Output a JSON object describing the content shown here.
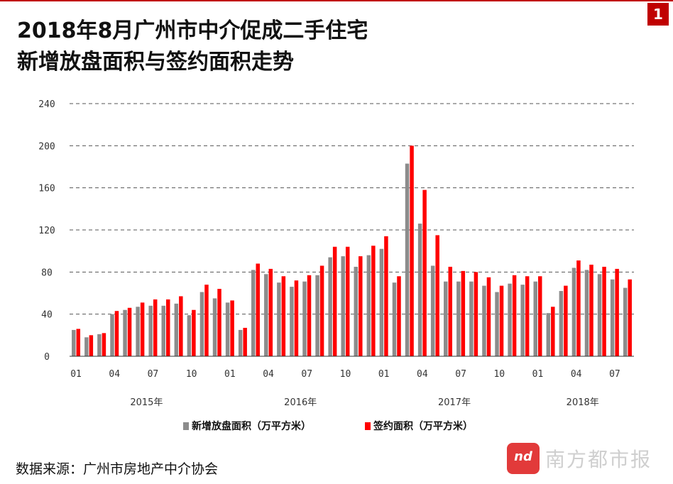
{
  "header": {
    "page_number": "1",
    "title_line1": "2018年8月广州市中介促成二手住宅",
    "title_line2": "新增放盘面积与签约面积走势"
  },
  "footer": {
    "source": "数据来源：广州市房地产中介协会"
  },
  "watermark": {
    "text": "南方都市报",
    "logo": "nd"
  },
  "chart_data": {
    "type": "bar",
    "ylim": [
      0,
      240
    ],
    "yticks": [
      "0",
      "40",
      "80",
      "120",
      "160",
      "200",
      "240"
    ],
    "grid": true,
    "legend_position": "bottom",
    "categories": [
      "01",
      "02",
      "03",
      "04",
      "05",
      "06",
      "07",
      "08",
      "09",
      "10",
      "11",
      "12",
      "01",
      "02",
      "03",
      "04",
      "05",
      "06",
      "07",
      "08",
      "09",
      "10",
      "11",
      "12",
      "01",
      "02",
      "03",
      "04",
      "05",
      "06",
      "07",
      "08",
      "09",
      "10",
      "11",
      "12",
      "01",
      "02",
      "03",
      "04",
      "05",
      "06",
      "07",
      "08"
    ],
    "x_tick_labels": [
      {
        "index": 0,
        "label": "01"
      },
      {
        "index": 3,
        "label": "04"
      },
      {
        "index": 6,
        "label": "07"
      },
      {
        "index": 9,
        "label": "10"
      },
      {
        "index": 12,
        "label": "01"
      },
      {
        "index": 15,
        "label": "04"
      },
      {
        "index": 18,
        "label": "07"
      },
      {
        "index": 21,
        "label": "10"
      },
      {
        "index": 24,
        "label": "01"
      },
      {
        "index": 27,
        "label": "04"
      },
      {
        "index": 30,
        "label": "07"
      },
      {
        "index": 33,
        "label": "10"
      },
      {
        "index": 36,
        "label": "01"
      },
      {
        "index": 39,
        "label": "04"
      },
      {
        "index": 42,
        "label": "07"
      }
    ],
    "year_labels": [
      {
        "center_index": 5.5,
        "label": "2015年"
      },
      {
        "center_index": 17.5,
        "label": "2016年"
      },
      {
        "center_index": 29.5,
        "label": "2017年"
      },
      {
        "center_index": 39.5,
        "label": "2018年"
      }
    ],
    "series": [
      {
        "name": "新增放盘面积（万平方米）",
        "color": "#8c8c8c",
        "values": [
          25,
          18,
          21,
          40,
          44,
          47,
          48,
          48,
          50,
          39,
          61,
          55,
          51,
          25,
          82,
          78,
          70,
          66,
          71,
          77,
          94,
          95,
          85,
          96,
          102,
          70,
          183,
          126,
          86,
          71,
          71,
          71,
          67,
          61,
          69,
          68,
          71,
          41,
          62,
          84,
          82,
          78,
          73,
          65
        ]
      },
      {
        "name": "签约面积（万平方米）",
        "color": "#ff0000",
        "values": [
          26,
          20,
          22,
          43,
          46,
          51,
          54,
          54,
          57,
          44,
          68,
          64,
          53,
          27,
          88,
          83,
          76,
          72,
          77,
          86,
          104,
          104,
          95,
          105,
          114,
          76,
          200,
          158,
          115,
          85,
          81,
          80,
          75,
          67,
          77,
          76,
          76,
          47,
          67,
          91,
          87,
          85,
          83,
          73
        ]
      }
    ]
  }
}
